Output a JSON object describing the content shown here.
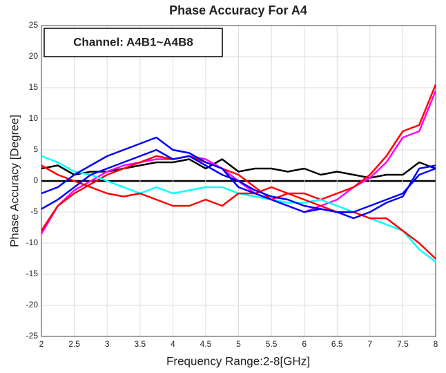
{
  "chart_data": {
    "type": "line",
    "title": "Phase Accuracy For A4",
    "x_label": "Frequency Range:2-8[GHz]",
    "y_label": "Phase Accuracy [Degree]",
    "annotation": "Channel: A4B1~A4B8",
    "x": [
      2,
      2.25,
      2.5,
      2.75,
      3,
      3.25,
      3.5,
      3.75,
      4,
      4.25,
      4.5,
      4.75,
      5,
      5.25,
      5.5,
      5.75,
      6,
      6.25,
      6.5,
      6.75,
      7,
      7.25,
      7.5,
      7.75,
      8
    ],
    "series": [
      {
        "color": "#000000",
        "values": [
          2,
          2.5,
          1,
          1.5,
          1.5,
          2,
          2.5,
          3,
          3,
          3.5,
          2,
          3.5,
          1.5,
          2,
          2,
          1.5,
          2,
          1,
          1.5,
          1,
          0.5,
          1,
          1,
          3,
          2
        ]
      },
      {
        "color": "#ff00ff",
        "values": [
          -8.5,
          -4,
          -1.5,
          0,
          1.5,
          2.5,
          3,
          3.5,
          3.5,
          4,
          3.5,
          2,
          0,
          -2,
          -3,
          -4,
          -5,
          -4,
          -3,
          -1,
          0.5,
          3,
          7,
          8,
          14.5
        ]
      },
      {
        "color": "#ff0000",
        "values": [
          -8,
          -4,
          -2,
          -0.5,
          1,
          2,
          3,
          4,
          3.5,
          4,
          3,
          2,
          1,
          -1,
          -3,
          -2,
          -2,
          -3,
          -2,
          -1,
          1,
          4,
          8,
          9,
          15.5
        ]
      },
      {
        "color": "#00ffff",
        "values": [
          4,
          3,
          1.5,
          1,
          0,
          -1,
          -2,
          -1,
          -2,
          -1.5,
          -1,
          -1,
          -2,
          -2.5,
          -3,
          -3.5,
          -3.5,
          -3,
          -4,
          -5,
          -6,
          -7,
          -8,
          -11,
          -13
        ]
      },
      {
        "color": "#ff0000",
        "values": [
          2.5,
          1,
          0,
          -1,
          -2,
          -2.5,
          -2,
          -3,
          -4,
          -4,
          -3,
          -4,
          -2,
          -2,
          -1,
          -2,
          -3,
          -4,
          -5,
          -5,
          -6,
          -6,
          -8,
          -10,
          -12.5
        ]
      },
      {
        "color": "#0000ff",
        "values": [
          -4.5,
          -3,
          -1,
          1,
          2,
          3,
          4,
          5,
          3.5,
          4,
          2.5,
          1,
          0,
          -1.5,
          -2.5,
          -3,
          -4,
          -4.5,
          -5,
          -5,
          -4,
          -3,
          -2,
          1,
          2
        ]
      },
      {
        "color": "#0000ff",
        "values": [
          -2,
          -1,
          1,
          2.5,
          4,
          5,
          6,
          7,
          5,
          4.5,
          3,
          2,
          -1,
          -2,
          -3,
          -4,
          -5,
          -4.5,
          -5,
          -6,
          -5,
          -3.5,
          -2.5,
          2,
          2.5
        ]
      }
    ],
    "xlim": [
      2,
      8
    ],
    "ylim": [
      -25,
      25
    ],
    "xticks": [
      2,
      2.5,
      3,
      3.5,
      4,
      4.5,
      5,
      5.5,
      6,
      6.5,
      7,
      7.5,
      8
    ],
    "yticks": [
      -25,
      -20,
      -15,
      -10,
      -5,
      0,
      5,
      10,
      15,
      20,
      25
    ],
    "grid": true
  }
}
